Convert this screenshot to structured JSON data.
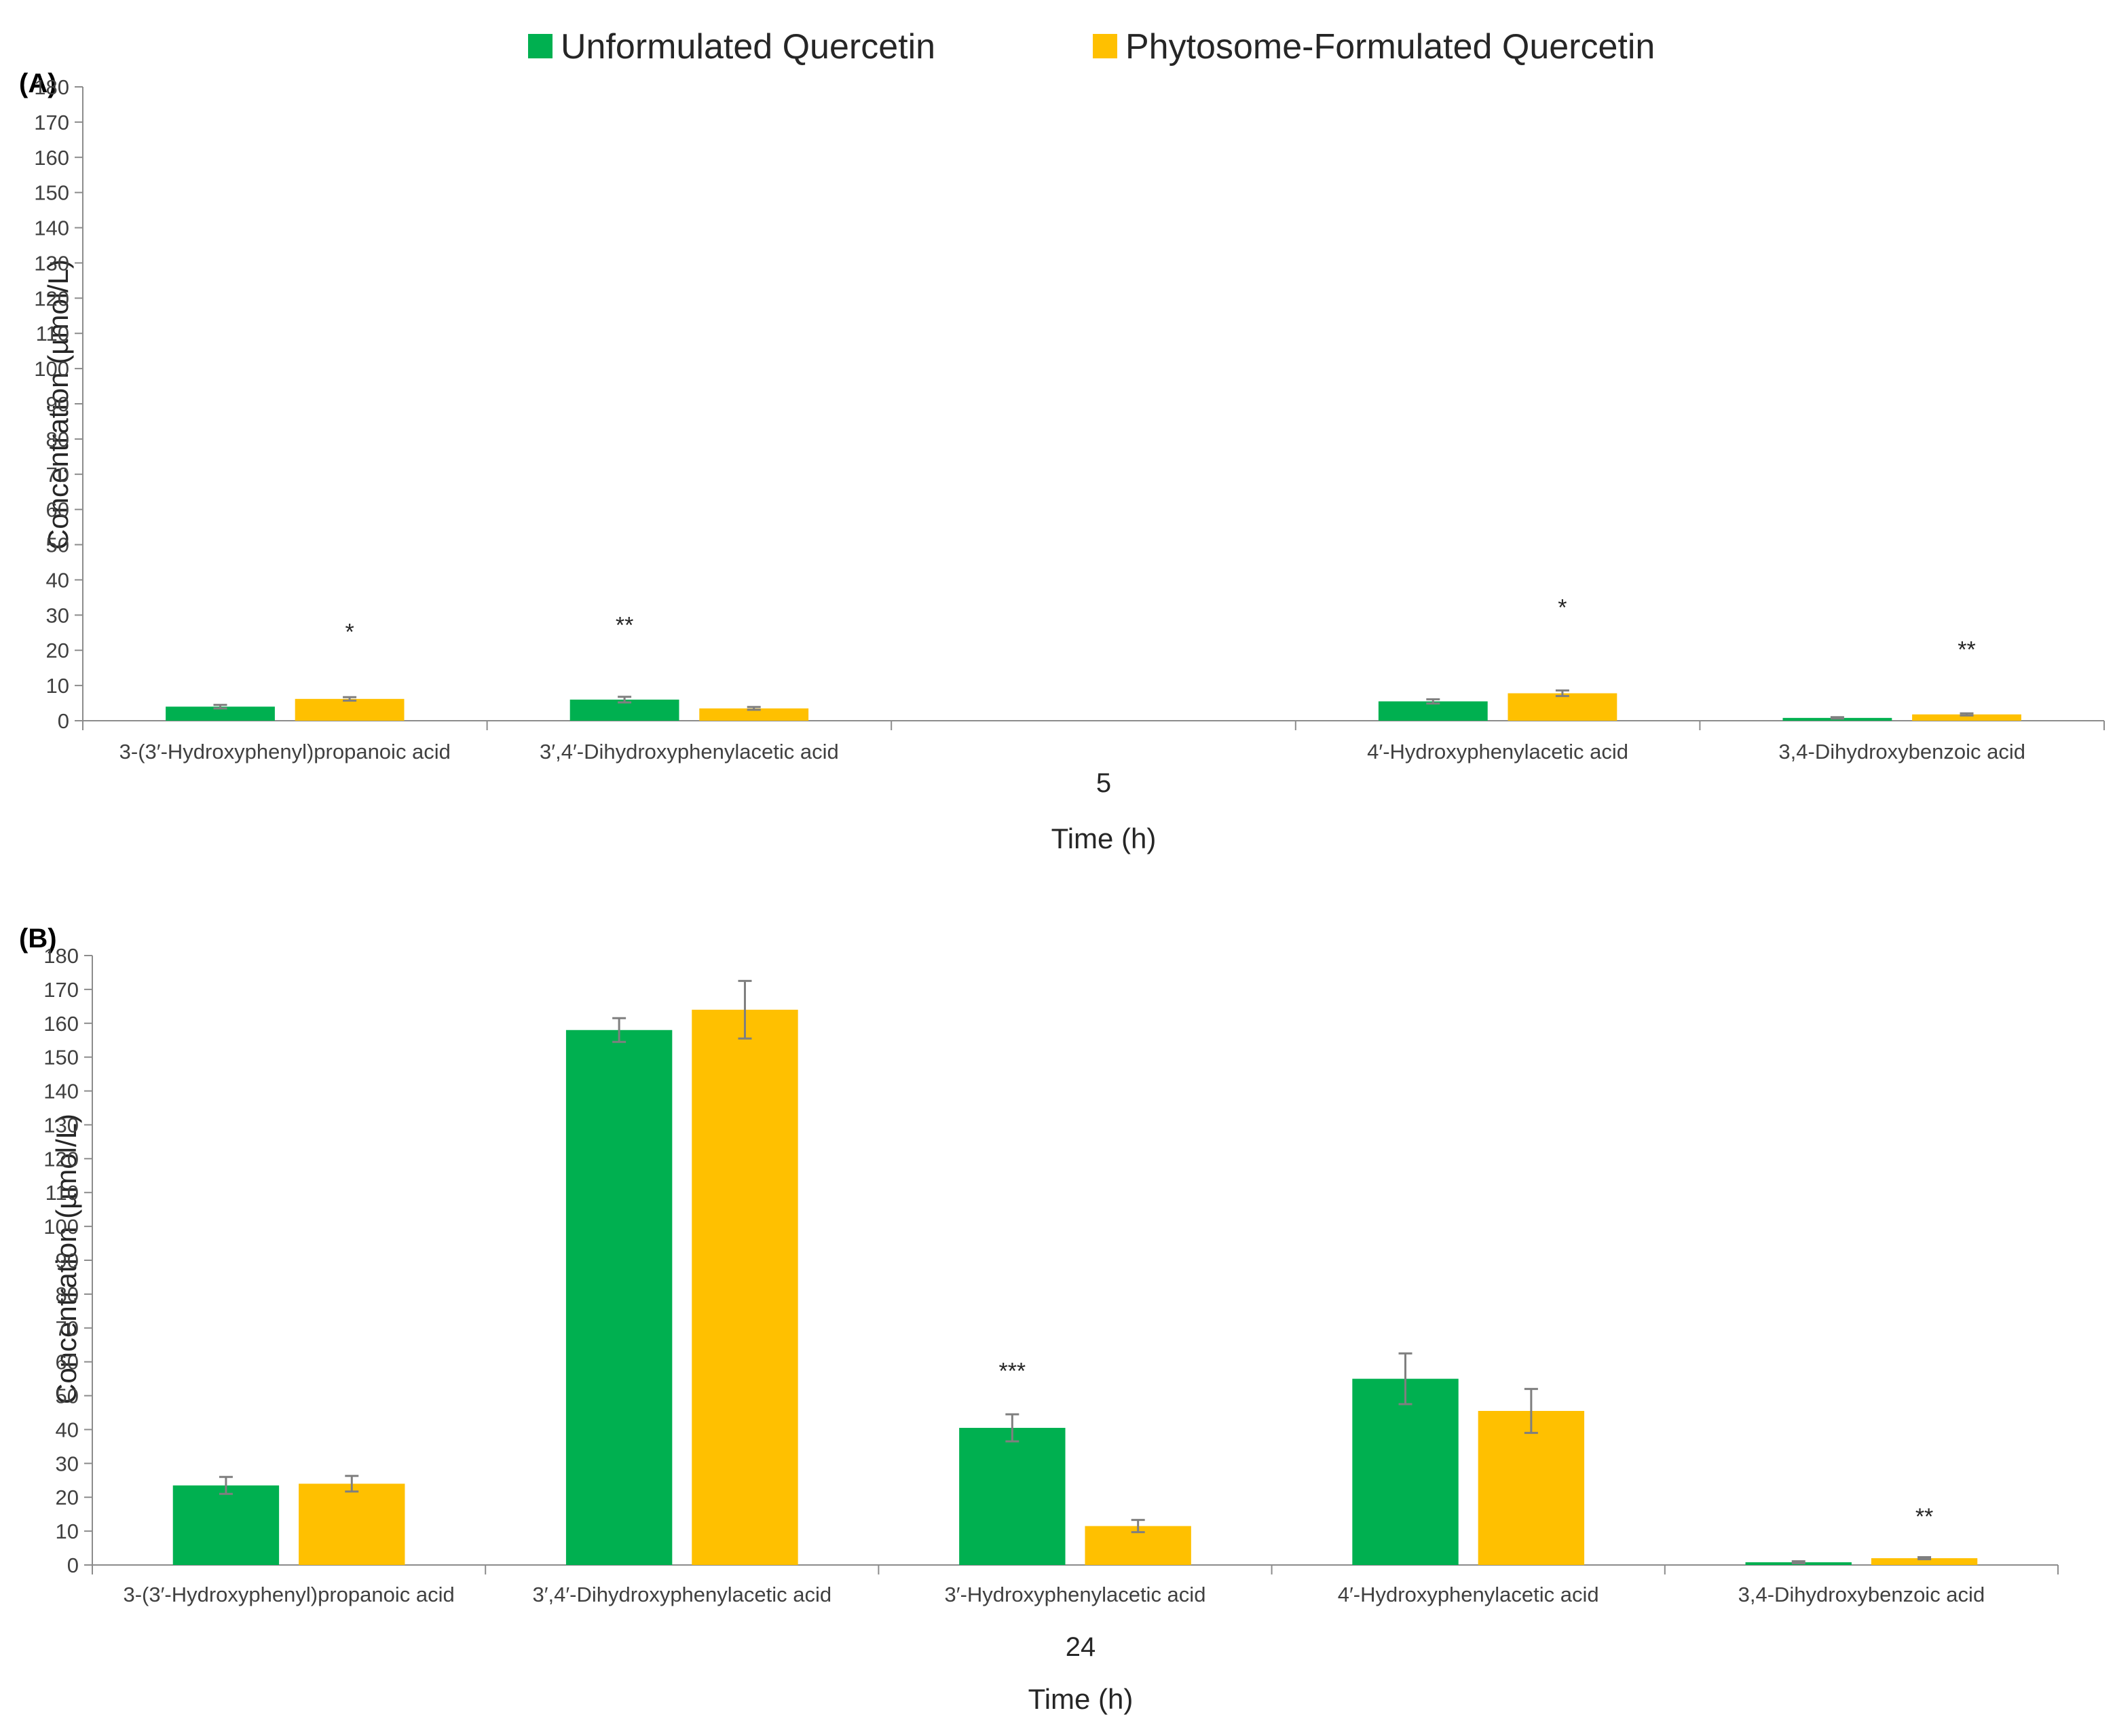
{
  "legend": [
    {
      "label": "Unformulated Quercetin",
      "color": "#00b050"
    },
    {
      "label": "Phytosome-Formulated Quercetin",
      "color": "#ffc000"
    }
  ],
  "chart_data": [
    {
      "panel_label": "(A)",
      "type": "bar",
      "group_label": "5",
      "xlabel": "Time (h)",
      "ylabel": "Concentration (µmol/L)",
      "ylim": [
        0,
        180
      ],
      "ytick_step": 10,
      "categories": [
        "3-(3′-Hydroxyphenyl)propanoic acid",
        "3′,4′-Dihydroxyphenylacetic acid",
        "",
        "4′-Hydroxyphenylacetic acid",
        "3,4-Dihydroxybenzoic acid"
      ],
      "series": [
        {
          "name": "Unformulated Quercetin",
          "color": "#00b050",
          "values": [
            4,
            6,
            null,
            5.5,
            0.8
          ],
          "errors": [
            0.5,
            0.8,
            null,
            0.6,
            0.2
          ]
        },
        {
          "name": "Phytosome-Formulated Quercetin",
          "color": "#ffc000",
          "values": [
            6.2,
            3.5,
            null,
            7.8,
            1.8
          ],
          "errors": [
            0.5,
            0.4,
            null,
            0.8,
            0.3
          ]
        }
      ],
      "significance": [
        {
          "category": 0,
          "series": 1,
          "label": "*",
          "y": 23
        },
        {
          "category": 1,
          "series": 0,
          "label": "**",
          "y": 25
        },
        {
          "category": 3,
          "series": 1,
          "label": "*",
          "y": 30
        },
        {
          "category": 4,
          "series": 1,
          "label": "**",
          "y": 18
        }
      ],
      "grid": false
    },
    {
      "panel_label": "(B)",
      "type": "bar",
      "group_label": "24",
      "xlabel": "Time (h)",
      "ylabel": "Concentration  (µmol/L)",
      "ylim": [
        0,
        180
      ],
      "ytick_step": 10,
      "categories": [
        "3-(3′-Hydroxyphenyl)propanoic acid",
        "3′,4′-Dihydroxyphenylacetic acid",
        "3′-Hydroxyphenylacetic acid",
        "4′-Hydroxyphenylacetic acid",
        "3,4-Dihydroxybenzoic acid"
      ],
      "series": [
        {
          "name": "Unformulated Quercetin",
          "color": "#00b050",
          "values": [
            23.5,
            158,
            40.5,
            55,
            0.8
          ],
          "errors": [
            2.5,
            3.5,
            4,
            7.5,
            0.3
          ]
        },
        {
          "name": "Phytosome-Formulated Quercetin",
          "color": "#ffc000",
          "values": [
            24,
            164,
            11.5,
            45.5,
            2
          ],
          "errors": [
            2.3,
            8.5,
            1.8,
            6.5,
            0.3
          ]
        }
      ],
      "significance": [
        {
          "category": 2,
          "series": 0,
          "label": "***",
          "y": 55
        },
        {
          "category": 4,
          "series": 1,
          "label": "**",
          "y": 12
        }
      ],
      "grid": false
    }
  ]
}
